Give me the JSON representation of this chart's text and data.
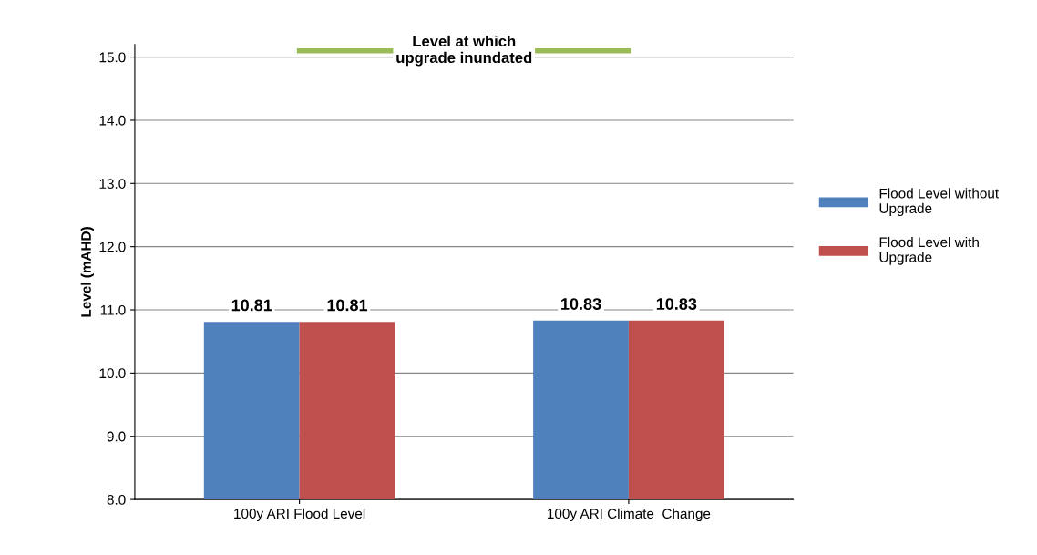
{
  "chart_data": {
    "type": "bar",
    "ylabel": "Level (mAHD)",
    "categories": [
      "100y ARI Flood Level",
      "100y ARI Climate  Change"
    ],
    "series": [
      {
        "name": "Flood Level without Upgrade",
        "color": "#4f81bd",
        "values": [
          10.81,
          10.83
        ]
      },
      {
        "name": "Flood Level with Upgrade",
        "color": "#c0504d",
        "values": [
          10.81,
          10.83
        ]
      }
    ],
    "ylim": [
      8,
      15.2
    ],
    "yticks": [
      {
        "value": 8,
        "label": "8.0"
      },
      {
        "value": 9,
        "label": "9.0"
      },
      {
        "value": 10,
        "label": "10.0"
      },
      {
        "value": 11,
        "label": "11.0"
      },
      {
        "value": 12,
        "label": "12.0"
      },
      {
        "value": 13,
        "label": "13.0"
      },
      {
        "value": 14,
        "label": "14.0"
      },
      {
        "value": 15,
        "label": "15.0"
      }
    ],
    "ref_lines": [
      {
        "axis": "y",
        "value": 15.1,
        "label": "Level at which\nupgrade inundated",
        "color": "#9bbb59"
      }
    ],
    "data_labels": true,
    "grid": "y",
    "legend": "right"
  }
}
